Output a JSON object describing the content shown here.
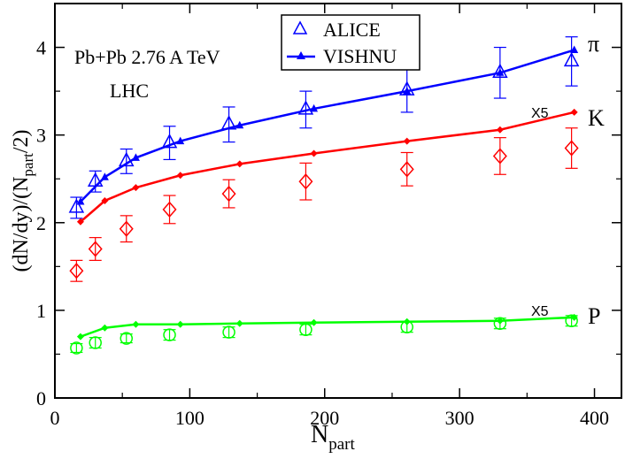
{
  "chart_data": {
    "type": "scatter",
    "title": "",
    "xlabel": "N",
    "xlabel_sub": "part",
    "ylabel": "(dN/dy)/(N",
    "ylabel_sub": "part",
    "ylabel_tail": "/2)",
    "xlim": [
      0,
      420
    ],
    "ylim": [
      0,
      4.5
    ],
    "x_ticks": [
      0,
      100,
      200,
      300,
      400
    ],
    "y_ticks": [
      0,
      1,
      2,
      3,
      4
    ],
    "annotations": {
      "system": "Pb+Pb 2.76 A TeV",
      "collider": "LHC",
      "label_pi": "π",
      "label_k": "K",
      "label_p": "P",
      "scale_k": "X5",
      "scale_p": "X5"
    },
    "legend": {
      "position": "top-center",
      "entries": [
        {
          "label": "ALICE",
          "marker": "triangle-open",
          "color": "#0000ff"
        },
        {
          "label": "VISHNU",
          "marker": "triangle-filled-line",
          "color": "#0000ff"
        }
      ]
    },
    "series": [
      {
        "name": "ALICE pi",
        "kind": "data",
        "marker": "triangle",
        "color": "#0000ff",
        "x": [
          16,
          30,
          53,
          85,
          129,
          186,
          261,
          330,
          383
        ],
        "y": [
          2.17,
          2.47,
          2.7,
          2.91,
          3.12,
          3.29,
          3.51,
          3.71,
          3.84
        ],
        "err": [
          0.12,
          0.12,
          0.14,
          0.19,
          0.2,
          0.21,
          0.25,
          0.29,
          0.28
        ]
      },
      {
        "name": "VISHNU pi",
        "kind": "model",
        "marker": "triangle",
        "color": "#0000ff",
        "x": [
          19,
          37,
          60,
          93,
          137,
          192,
          261,
          330,
          385
        ],
        "y": [
          2.24,
          2.52,
          2.74,
          2.93,
          3.11,
          3.3,
          3.5,
          3.71,
          3.97
        ]
      },
      {
        "name": "ALICE K x5",
        "kind": "data",
        "marker": "diamond",
        "color": "#ff0000",
        "x": [
          16,
          30,
          53,
          85,
          129,
          186,
          261,
          330,
          383
        ],
        "y": [
          1.45,
          1.7,
          1.93,
          2.15,
          2.33,
          2.47,
          2.61,
          2.76,
          2.85
        ],
        "err": [
          0.12,
          0.13,
          0.15,
          0.16,
          0.16,
          0.21,
          0.19,
          0.21,
          0.23
        ]
      },
      {
        "name": "VISHNU K x5",
        "kind": "model",
        "marker": "diamond",
        "color": "#ff0000",
        "x": [
          19,
          37,
          60,
          93,
          137,
          192,
          261,
          330,
          385
        ],
        "y": [
          2.01,
          2.25,
          2.4,
          2.54,
          2.67,
          2.79,
          2.93,
          3.06,
          3.26
        ]
      },
      {
        "name": "ALICE P x5",
        "kind": "data",
        "marker": "circle",
        "color": "#00ff00",
        "x": [
          16,
          30,
          53,
          85,
          129,
          186,
          261,
          330,
          383
        ],
        "y": [
          0.57,
          0.63,
          0.68,
          0.72,
          0.75,
          0.78,
          0.81,
          0.85,
          0.88
        ],
        "err": [
          0.05,
          0.06,
          0.05,
          0.06,
          0.06,
          0.06,
          0.06,
          0.06,
          0.06
        ]
      },
      {
        "name": "VISHNU P x5",
        "kind": "model",
        "marker": "diamond",
        "color": "#00ff00",
        "x": [
          19,
          37,
          60,
          93,
          137,
          192,
          261,
          330,
          385
        ],
        "y": [
          0.7,
          0.8,
          0.84,
          0.84,
          0.85,
          0.86,
          0.87,
          0.88,
          0.92
        ]
      }
    ]
  }
}
